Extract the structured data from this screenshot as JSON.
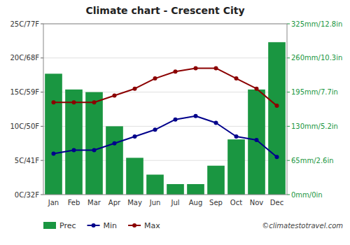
{
  "chart_data": {
    "type": "bar",
    "title": "Climate chart - Crescent City",
    "categories": [
      "Jan",
      "Feb",
      "Mar",
      "Apr",
      "May",
      "Jun",
      "Jul",
      "Aug",
      "Sep",
      "Oct",
      "Nov",
      "Dec"
    ],
    "series": [
      {
        "name": "Prec",
        "type": "bar",
        "axis": "y2",
        "color": "#1a9641",
        "values": [
          230,
          200,
          195,
          130,
          70,
          38,
          20,
          20,
          55,
          105,
          200,
          290
        ]
      },
      {
        "name": "Min",
        "type": "line",
        "color": "#00008B",
        "marker": "circle",
        "values": [
          6,
          6.5,
          6.5,
          7.5,
          8.5,
          9.5,
          11,
          11.5,
          10.5,
          8.5,
          8,
          5.5
        ]
      },
      {
        "name": "Max",
        "type": "line",
        "color": "#8B0000",
        "marker": "circle",
        "values": [
          13.5,
          13.5,
          13.5,
          14.5,
          15.5,
          17,
          18,
          18.5,
          18.5,
          17,
          15.5,
          13
        ]
      }
    ],
    "ylim": [
      0,
      25
    ],
    "yticks": [
      {
        "value": 0,
        "label": "0C/32F"
      },
      {
        "value": 5,
        "label": "5C/41F"
      },
      {
        "value": 10,
        "label": "10C/50F"
      },
      {
        "value": 15,
        "label": "15C/59F"
      },
      {
        "value": 20,
        "label": "20C/68F"
      },
      {
        "value": 25,
        "label": "25C/77F"
      }
    ],
    "y2lim": [
      0,
      325
    ],
    "y2ticks": [
      {
        "value": 0,
        "label": "0mm/0in"
      },
      {
        "value": 65,
        "label": "65mm/2.6in"
      },
      {
        "value": 130,
        "label": "130mm/5.2in"
      },
      {
        "value": 195,
        "label": "195mm/7.7in"
      },
      {
        "value": 260,
        "label": "260mm/10.3in"
      },
      {
        "value": 325,
        "label": "325mm/12.8in"
      }
    ],
    "grid": true,
    "legend": "bottom",
    "annotations": [
      "©climatestotravel.com"
    ]
  }
}
